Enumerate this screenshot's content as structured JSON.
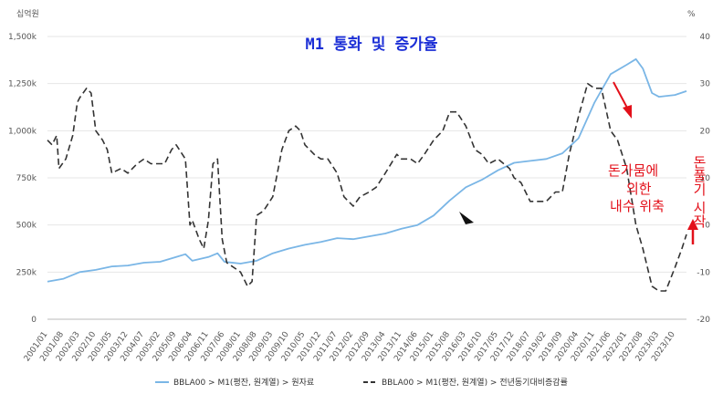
{
  "chart_data": {
    "type": "line",
    "title": "M1 통화 및 증가율",
    "y_left_unit": "십억원",
    "y_right_unit": "%",
    "y_left_ticks": [
      "0",
      "250k",
      "500k",
      "750k",
      "1,000k",
      "1,250k",
      "1,500k"
    ],
    "y_left_lim": [
      0,
      1500000
    ],
    "y_right_ticks": [
      "-20",
      "-10",
      "0",
      "10",
      "20",
      "30",
      "40"
    ],
    "y_right_lim": [
      -20,
      40
    ],
    "x_ticks": [
      "2001/01",
      "2001/08",
      "2002/03",
      "2002/10",
      "2003/05",
      "2003/12",
      "2004/07",
      "2005/02",
      "2005/09",
      "2006/04",
      "2006/11",
      "2007/06",
      "2008/01",
      "2008/08",
      "2009/03",
      "2009/10",
      "2010/05",
      "2010/12",
      "2011/07",
      "2012/02",
      "2012/09",
      "2013/04",
      "2013/11",
      "2014/06",
      "2015/01",
      "2015/08",
      "2016/03",
      "2016/10",
      "2017/05",
      "2017/12",
      "2018/07",
      "2019/02",
      "2019/09",
      "2020/04",
      "2020/11",
      "2021/06",
      "2022/01",
      "2022/08",
      "2023/03",
      "2023/10"
    ],
    "grid": "horizontal",
    "legend_position": "bottom",
    "series": [
      {
        "name": "BBLA00 > M1(평잔, 원계열) > 원자료",
        "axis": "left",
        "color": "#7ab6e6",
        "points": [
          [
            "2001/01",
            200000
          ],
          [
            "2001/08",
            215000
          ],
          [
            "2002/03",
            250000
          ],
          [
            "2002/10",
            262000
          ],
          [
            "2003/05",
            280000
          ],
          [
            "2003/12",
            285000
          ],
          [
            "2004/07",
            300000
          ],
          [
            "2005/02",
            305000
          ],
          [
            "2005/09",
            330000
          ],
          [
            "2006/01",
            345000
          ],
          [
            "2006/04",
            310000
          ],
          [
            "2006/11",
            330000
          ],
          [
            "2007/03",
            350000
          ],
          [
            "2007/06",
            305000
          ],
          [
            "2008/01",
            295000
          ],
          [
            "2008/08",
            310000
          ],
          [
            "2009/03",
            350000
          ],
          [
            "2009/10",
            375000
          ],
          [
            "2010/05",
            395000
          ],
          [
            "2010/12",
            410000
          ],
          [
            "2011/07",
            430000
          ],
          [
            "2012/02",
            425000
          ],
          [
            "2012/09",
            440000
          ],
          [
            "2013/04",
            455000
          ],
          [
            "2013/11",
            480000
          ],
          [
            "2014/06",
            500000
          ],
          [
            "2015/01",
            550000
          ],
          [
            "2015/08",
            630000
          ],
          [
            "2016/03",
            700000
          ],
          [
            "2016/10",
            740000
          ],
          [
            "2017/05",
            790000
          ],
          [
            "2017/12",
            830000
          ],
          [
            "2018/07",
            840000
          ],
          [
            "2019/02",
            850000
          ],
          [
            "2019/09",
            880000
          ],
          [
            "2020/04",
            960000
          ],
          [
            "2020/11",
            1150000
          ],
          [
            "2021/06",
            1300000
          ],
          [
            "2022/01",
            1350000
          ],
          [
            "2022/05",
            1380000
          ],
          [
            "2022/08",
            1330000
          ],
          [
            "2022/12",
            1200000
          ],
          [
            "2023/03",
            1180000
          ],
          [
            "2023/10",
            1190000
          ],
          [
            "2024/03",
            1210000
          ]
        ]
      },
      {
        "name": "BBLA00 > M1(평잔, 원계열) > 전년동기대비증감률",
        "axis": "right",
        "color": "#333333",
        "dash": true,
        "points": [
          [
            "2001/01",
            18
          ],
          [
            "2001/03",
            17
          ],
          [
            "2001/05",
            19
          ],
          [
            "2001/06",
            12
          ],
          [
            "2001/09",
            14
          ],
          [
            "2001/12",
            19
          ],
          [
            "2002/02",
            26
          ],
          [
            "2002/03",
            27
          ],
          [
            "2002/06",
            29
          ],
          [
            "2002/08",
            28
          ],
          [
            "2002/10",
            20
          ],
          [
            "2003/01",
            18
          ],
          [
            "2003/03",
            16
          ],
          [
            "2003/05",
            11
          ],
          [
            "2003/09",
            12
          ],
          [
            "2003/12",
            11
          ],
          [
            "2004/04",
            13
          ],
          [
            "2004/07",
            14
          ],
          [
            "2004/10",
            13
          ],
          [
            "2005/01",
            13
          ],
          [
            "2005/04",
            13
          ],
          [
            "2005/07",
            16
          ],
          [
            "2005/09",
            17
          ],
          [
            "2006/01",
            14
          ],
          [
            "2006/03",
            0
          ],
          [
            "2006/04",
            1
          ],
          [
            "2006/07",
            -3
          ],
          [
            "2006/09",
            -5
          ],
          [
            "2006/11",
            1
          ],
          [
            "2007/01",
            13
          ],
          [
            "2007/03",
            14
          ],
          [
            "2007/05",
            -3
          ],
          [
            "2007/07",
            -8
          ],
          [
            "2008/01",
            -10
          ],
          [
            "2008/04",
            -13
          ],
          [
            "2008/06",
            -12
          ],
          [
            "2008/08",
            2
          ],
          [
            "2008/11",
            3
          ],
          [
            "2009/03",
            6
          ],
          [
            "2009/07",
            16
          ],
          [
            "2009/10",
            20
          ],
          [
            "2010/01",
            21
          ],
          [
            "2010/03",
            20
          ],
          [
            "2010/05",
            17
          ],
          [
            "2010/09",
            15
          ],
          [
            "2010/12",
            14
          ],
          [
            "2011/03",
            14
          ],
          [
            "2011/07",
            11
          ],
          [
            "2011/10",
            6
          ],
          [
            "2012/02",
            4
          ],
          [
            "2012/05",
            6
          ],
          [
            "2012/09",
            7
          ],
          [
            "2012/12",
            8
          ],
          [
            "2013/04",
            11
          ],
          [
            "2013/09",
            15
          ],
          [
            "2013/11",
            14
          ],
          [
            "2014/03",
            14
          ],
          [
            "2014/06",
            13
          ],
          [
            "2014/09",
            15
          ],
          [
            "2015/01",
            18
          ],
          [
            "2015/05",
            20
          ],
          [
            "2015/08",
            24
          ],
          [
            "2015/11",
            24
          ],
          [
            "2016/03",
            21
          ],
          [
            "2016/07",
            16
          ],
          [
            "2016/10",
            15
          ],
          [
            "2017/01",
            13
          ],
          [
            "2017/05",
            14
          ],
          [
            "2017/10",
            12
          ],
          [
            "2017/12",
            10
          ],
          [
            "2018/03",
            9
          ],
          [
            "2018/07",
            5
          ],
          [
            "2018/10",
            5
          ],
          [
            "2019/02",
            5
          ],
          [
            "2019/06",
            7
          ],
          [
            "2019/09",
            7
          ],
          [
            "2019/12",
            15
          ],
          [
            "2020/04",
            23
          ],
          [
            "2020/08",
            30
          ],
          [
            "2020/11",
            29
          ],
          [
            "2021/02",
            29
          ],
          [
            "2021/06",
            20
          ],
          [
            "2021/09",
            18
          ],
          [
            "2022/01",
            12
          ],
          [
            "2022/05",
            0
          ],
          [
            "2022/08",
            -5
          ],
          [
            "2022/12",
            -13
          ],
          [
            "2023/03",
            -14
          ],
          [
            "2023/06",
            -14
          ],
          [
            "2023/10",
            -9
          ],
          [
            "2024/01",
            -5
          ],
          [
            "2024/03",
            -2
          ]
        ]
      }
    ],
    "annotations": [
      {
        "text": "돈가뭄에"
      },
      {
        "text": "의한"
      },
      {
        "text": "내수 위축"
      },
      {
        "text": "돈풀기 시작"
      }
    ]
  }
}
